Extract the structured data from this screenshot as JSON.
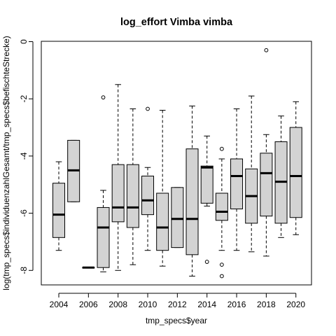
{
  "chart_data": {
    "type": "boxplot",
    "title": "log_effort Vimba vimba",
    "xlabel": "tmp_specs$year",
    "ylabel": "log(tmp_specs$individuenzahlGesamt/tmp_specs$befischteStrecke)",
    "categories": [
      "2004",
      "2005",
      "2006",
      "2007",
      "2008",
      "2009",
      "2010",
      "2011",
      "2012",
      "2013",
      "2014",
      "2015",
      "2016",
      "2017",
      "2018",
      "2019",
      "2020"
    ],
    "x_tick_labels": [
      "2004",
      "2006",
      "2008",
      "2010",
      "2012",
      "2014",
      "2016",
      "2018",
      "2020"
    ],
    "y_ticks": [
      0,
      -2,
      -4,
      -6,
      -8
    ],
    "ylim": [
      -8.3,
      0
    ],
    "grid": false,
    "box_fill": "#d3d3d3",
    "boxes": [
      {
        "year": "2004",
        "whisker_low": -7.3,
        "q1": -6.85,
        "median": -6.05,
        "q3": -4.95,
        "whisker_high": -4.2,
        "outliers": []
      },
      {
        "year": "2005",
        "whisker_low": -5.6,
        "q1": -5.6,
        "median": -4.5,
        "q3": -3.45,
        "whisker_high": -3.45,
        "outliers": []
      },
      {
        "year": "2006",
        "whisker_low": -7.9,
        "q1": -7.9,
        "median": -7.9,
        "q3": -7.9,
        "whisker_high": -7.9,
        "outliers": []
      },
      {
        "year": "2007",
        "whisker_low": -8.05,
        "q1": -7.9,
        "median": -6.5,
        "q3": -5.8,
        "whisker_high": -5.2,
        "outliers": [
          -1.95
        ]
      },
      {
        "year": "2008",
        "whisker_low": -8.0,
        "q1": -6.3,
        "median": -5.8,
        "q3": -4.3,
        "whisker_high": -1.5,
        "outliers": []
      },
      {
        "year": "2009",
        "whisker_low": -7.8,
        "q1": -6.5,
        "median": -5.8,
        "q3": -4.3,
        "whisker_high": -2.35,
        "outliers": []
      },
      {
        "year": "2010",
        "whisker_low": -7.3,
        "q1": -6.05,
        "median": -5.55,
        "q3": -4.7,
        "whisker_high": -4.4,
        "outliers": [
          -2.35
        ]
      },
      {
        "year": "2011",
        "whisker_low": -7.85,
        "q1": -7.3,
        "median": -6.5,
        "q3": -5.3,
        "whisker_high": -2.4,
        "outliers": []
      },
      {
        "year": "2012",
        "whisker_low": -7.2,
        "q1": -7.2,
        "median": -6.2,
        "q3": -5.1,
        "whisker_high": -5.1,
        "outliers": []
      },
      {
        "year": "2013",
        "whisker_low": -8.2,
        "q1": -7.45,
        "median": -6.2,
        "q3": -3.75,
        "whisker_high": -2.25,
        "outliers": []
      },
      {
        "year": "2014",
        "whisker_low": -5.75,
        "q1": -5.65,
        "median": -4.4,
        "q3": -4.35,
        "whisker_high": -3.3,
        "outliers": [
          -7.7
        ]
      },
      {
        "year": "2015",
        "whisker_low": -7.3,
        "q1": -6.25,
        "median": -5.95,
        "q3": -5.3,
        "whisker_high": -4.1,
        "outliers": [
          -3.75,
          -7.8,
          -8.2
        ]
      },
      {
        "year": "2016",
        "whisker_low": -7.3,
        "q1": -5.85,
        "median": -4.7,
        "q3": -4.1,
        "whisker_high": -2.35,
        "outliers": []
      },
      {
        "year": "2017",
        "whisker_low": -7.35,
        "q1": -6.35,
        "median": -5.4,
        "q3": -4.45,
        "whisker_high": -1.9,
        "outliers": []
      },
      {
        "year": "2018",
        "whisker_low": -7.5,
        "q1": -6.1,
        "median": -4.6,
        "q3": -3.9,
        "whisker_high": -3.25,
        "outliers": [
          -0.3
        ]
      },
      {
        "year": "2019",
        "whisker_low": -6.85,
        "q1": -6.35,
        "median": -4.9,
        "q3": -3.5,
        "whisker_high": -2.6,
        "outliers": []
      },
      {
        "year": "2020",
        "whisker_low": -6.75,
        "q1": -6.15,
        "median": -4.7,
        "q3": -3.0,
        "whisker_high": -2.1,
        "outliers": []
      }
    ]
  }
}
